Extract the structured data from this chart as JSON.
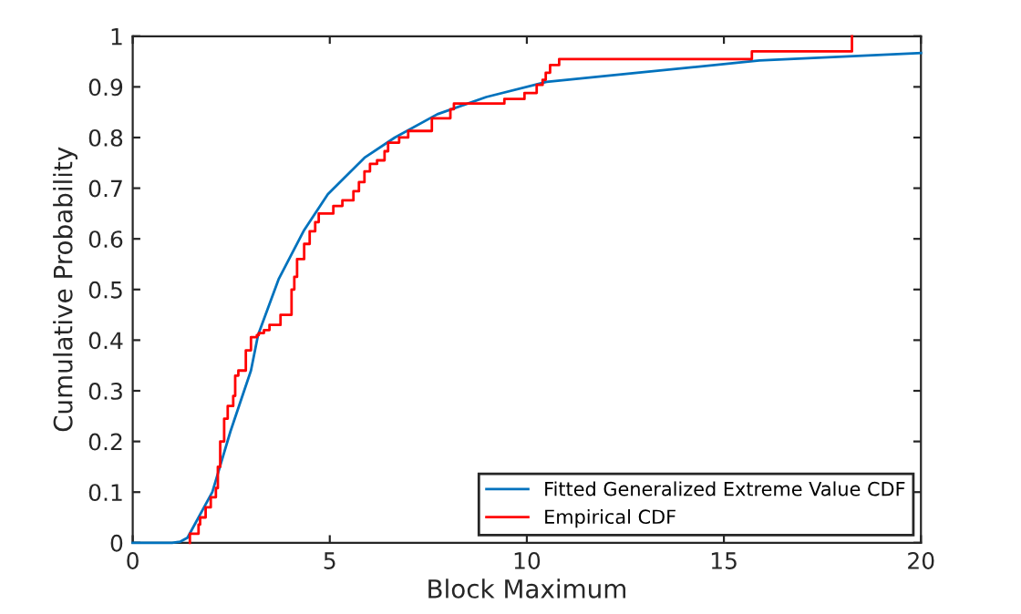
{
  "chart_data": {
    "type": "line",
    "xlabel": "Block Maximum",
    "ylabel": "Cumulative Probability",
    "xlim": [
      0,
      20
    ],
    "ylim": [
      0,
      1
    ],
    "xticks": [
      0,
      5,
      10,
      15,
      20
    ],
    "yticks": [
      0,
      0.1,
      0.2,
      0.3,
      0.4,
      0.5,
      0.6,
      0.7,
      0.8,
      0.9,
      1
    ],
    "grid": false,
    "legend": "bottom right",
    "series": [
      {
        "name": "Fitted Generalized Extreme Value CDF",
        "color": "#0072bd",
        "x": [
          0,
          1.0,
          1.2,
          1.39,
          2.02,
          2.48,
          3.0,
          3.18,
          3.7,
          4.34,
          4.95,
          5.88,
          6.65,
          7.73,
          8.97,
          10.5,
          12.8,
          15.9,
          20
        ],
        "values": [
          0,
          0,
          0.002,
          0.01,
          0.1,
          0.22,
          0.34,
          0.41,
          0.52,
          0.616,
          0.688,
          0.76,
          0.8,
          0.846,
          0.88,
          0.91,
          0.928,
          0.952,
          0.967
        ]
      },
      {
        "name": "Empirical CDF",
        "type": "step",
        "color": "#ff0000",
        "x": [
          1.45,
          1.45,
          1.67,
          1.71,
          1.85,
          1.98,
          2.11,
          2.16,
          2.22,
          2.32,
          2.41,
          2.55,
          2.6,
          2.68,
          2.87,
          3.0,
          3.15,
          3.2,
          3.33,
          3.47,
          3.75,
          4.03,
          4.1,
          4.17,
          4.35,
          4.49,
          4.63,
          4.72,
          5.09,
          5.32,
          5.6,
          5.74,
          5.88,
          6.02,
          6.2,
          6.39,
          6.48,
          6.76,
          6.99,
          7.59,
          8.06,
          8.15,
          9.43,
          9.94,
          10.25,
          10.4,
          10.48,
          10.59,
          10.82,
          15.71,
          18.25
        ],
        "values": [
          0,
          0.018,
          0.036,
          0.05,
          0.07,
          0.09,
          0.108,
          0.15,
          0.2,
          0.245,
          0.27,
          0.29,
          0.33,
          0.34,
          0.38,
          0.406,
          0.41,
          0.414,
          0.42,
          0.43,
          0.45,
          0.5,
          0.525,
          0.56,
          0.59,
          0.615,
          0.633,
          0.65,
          0.665,
          0.676,
          0.694,
          0.712,
          0.733,
          0.748,
          0.755,
          0.773,
          0.79,
          0.8,
          0.813,
          0.838,
          0.856,
          0.867,
          0.876,
          0.888,
          0.904,
          0.914,
          0.928,
          0.943,
          0.955,
          0.97,
          1.0
        ]
      }
    ]
  }
}
